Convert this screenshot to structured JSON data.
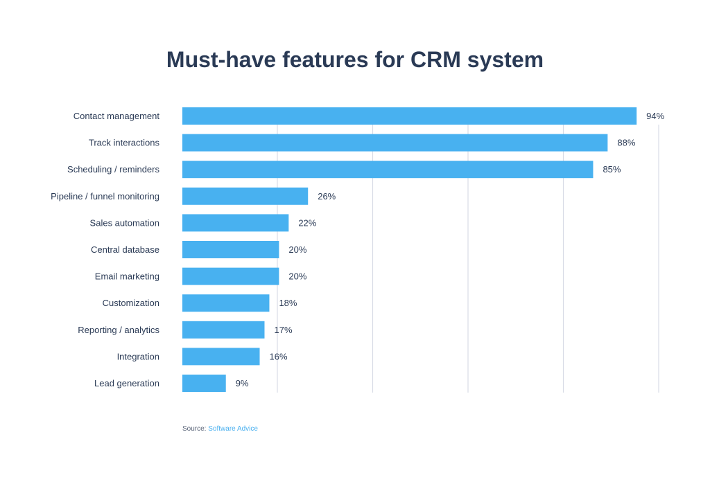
{
  "chart_data": {
    "type": "bar",
    "orientation": "horizontal",
    "title": "Must-have features for CRM system",
    "categories": [
      "Contact management",
      "Track interactions",
      "Scheduling / reminders",
      "Pipeline / funnel monitoring",
      "Sales automation",
      "Central database",
      "Email marketing",
      "Customization",
      "Reporting / analytics",
      "Integration",
      "Lead generation"
    ],
    "values": [
      94,
      88,
      85,
      26,
      22,
      20,
      20,
      18,
      17,
      16,
      9
    ],
    "data_labels": [
      "94%",
      "88%",
      "85%",
      "26%",
      "22%",
      "20%",
      "20%",
      "18%",
      "17%",
      "16%",
      "9%"
    ],
    "unit": "%",
    "xlim": [
      0,
      100
    ],
    "grid": true,
    "legend": "none",
    "colors": {
      "bar": "#48b1f0",
      "grid": "#d8dbe6",
      "title": "#2a3a55",
      "label": "#2a3a55"
    }
  },
  "source": {
    "label": "Source:",
    "name": "Software Advice"
  }
}
